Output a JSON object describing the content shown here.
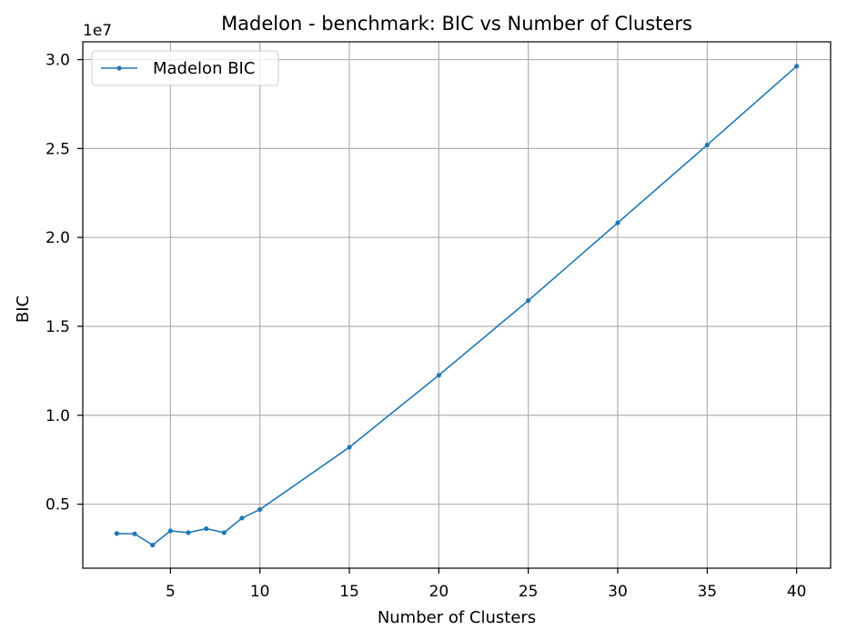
{
  "chart_data": {
    "type": "line",
    "title": "Madelon - benchmark: BIC vs Number of Clusters",
    "xlabel": "Number of Clusters",
    "ylabel": "BIC",
    "y_offset_label": "1e7",
    "xlim": [
      0.1,
      41.9
    ],
    "ylim": [
      1.4,
      31.0
    ],
    "x_ticks": [
      5,
      10,
      15,
      20,
      25,
      30,
      35,
      40
    ],
    "x_tick_labels": [
      "5",
      "10",
      "15",
      "20",
      "25",
      "30",
      "35",
      "40"
    ],
    "y_ticks": [
      5,
      10,
      15,
      20,
      25,
      30
    ],
    "y_tick_labels": [
      "0.5",
      "1.0",
      "1.5",
      "2.0",
      "2.5",
      "3.0"
    ],
    "y_units_note": "y values in units of 1e6",
    "grid": true,
    "legend_position": "upper-left",
    "series": [
      {
        "name": "Madelon BIC",
        "color": "#1f77b4",
        "marker": "dot",
        "x": [
          2,
          3,
          4,
          5,
          6,
          7,
          8,
          9,
          10,
          15,
          20,
          25,
          30,
          35,
          40
        ],
        "y": [
          3.35,
          3.33,
          2.7,
          3.5,
          3.4,
          3.62,
          3.4,
          4.22,
          4.7,
          8.2,
          12.25,
          16.45,
          20.82,
          25.2,
          29.63
        ]
      }
    ]
  }
}
